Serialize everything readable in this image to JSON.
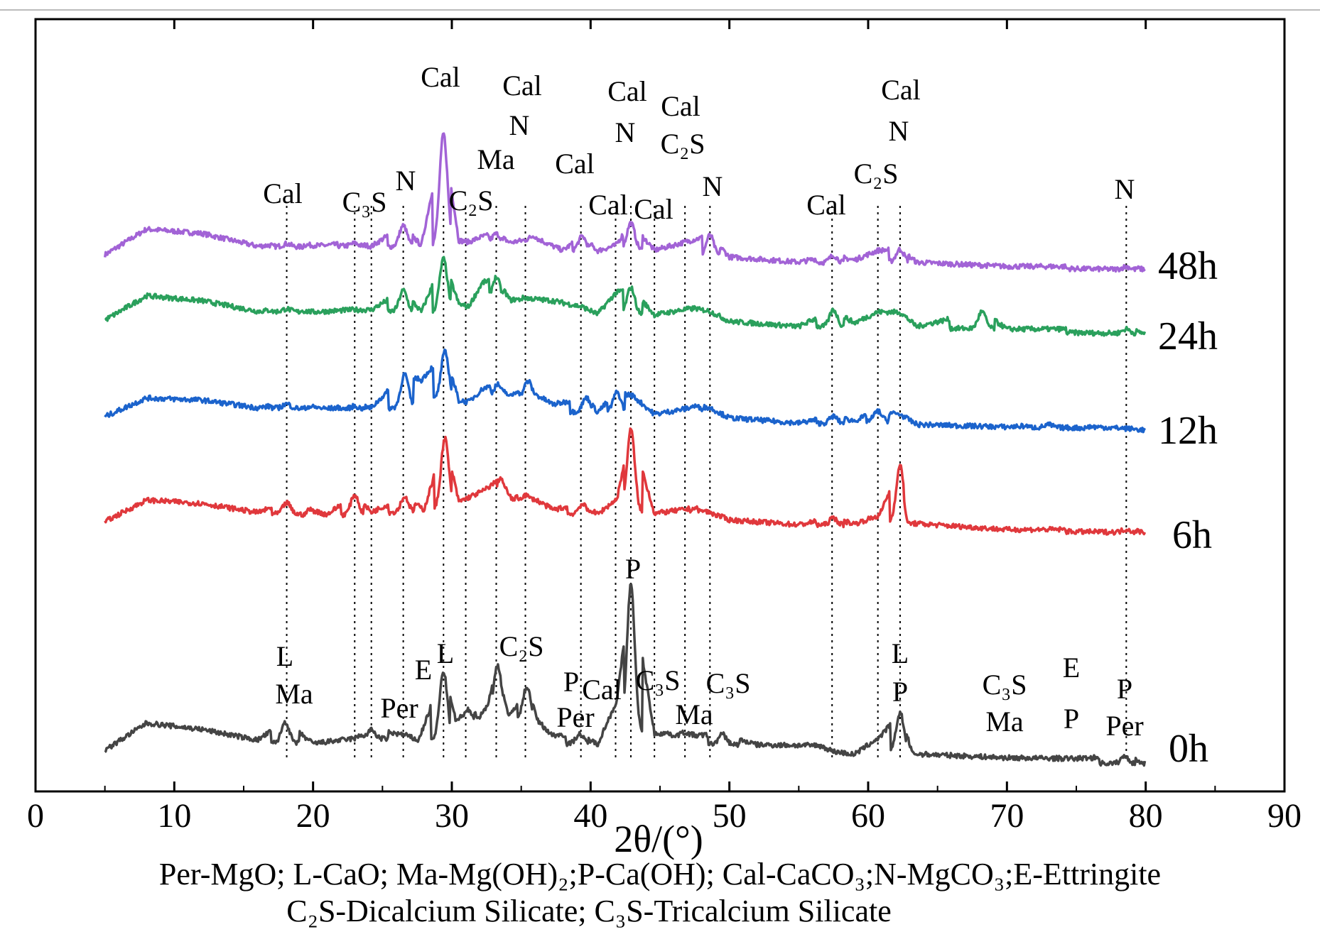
{
  "chart_data": {
    "type": "line",
    "title": "",
    "xlabel": "2θ/(°)",
    "ylabel": "",
    "xlim": [
      0,
      90
    ],
    "xticks": [
      0,
      10,
      20,
      30,
      40,
      50,
      60,
      70,
      80,
      90
    ],
    "grid": false,
    "series": [
      {
        "name": "48h",
        "color": "#a263d6",
        "x": [
          5,
          8,
          12,
          16,
          18.1,
          20.5,
          23,
          24.2,
          26.5,
          27.8,
          29.4,
          30.5,
          31.2,
          32.2,
          33.2,
          34.2,
          35.3,
          35.9,
          36.8,
          38,
          39.4,
          40.5,
          41.8,
          42.9,
          44.6,
          46.8,
          47.5,
          48.6,
          50,
          55,
          57.5,
          59,
          60.7,
          62.3,
          63.5,
          70,
          78.6,
          80
        ],
        "offset": [
          3,
          40,
          35,
          18,
          22,
          20,
          24,
          20,
          50,
          22,
          180,
          30,
          28,
          36,
          40,
          28,
          32,
          38,
          28,
          18,
          38,
          18,
          26,
          58,
          20,
          32,
          36,
          42,
          12,
          6,
          16,
          10,
          24,
          26,
          8,
          4,
          6,
          2
        ]
      },
      {
        "name": "24h",
        "color": "#2aa05c",
        "x": [
          5,
          8,
          12,
          16,
          18.1,
          20,
          23,
          24.2,
          26.5,
          27.8,
          29.4,
          30.5,
          31.2,
          32.2,
          33.2,
          34.2,
          35.3,
          36,
          37.3,
          39.4,
          40.5,
          41.8,
          42.9,
          44.6,
          46.8,
          47.5,
          48.6,
          50,
          55,
          57.5,
          59,
          60.7,
          62.3,
          63.5,
          68.2,
          70,
          78.6,
          80
        ],
        "offset": [
          3,
          38,
          32,
          18,
          22,
          18,
          22,
          22,
          50,
          20,
          95,
          32,
          28,
          62,
          70,
          38,
          42,
          40,
          38,
          30,
          20,
          50,
          58,
          20,
          28,
          30,
          26,
          12,
          6,
          30,
          12,
          28,
          28,
          8,
          30,
          6,
          8,
          2
        ]
      },
      {
        "name": "12h",
        "color": "#1b63cc",
        "x": [
          5,
          8,
          12,
          16,
          18.1,
          21,
          23,
          24.2,
          26.6,
          27.8,
          29.5,
          30.5,
          31.2,
          32.3,
          33.3,
          34.2,
          35.5,
          36,
          37.3,
          39.7,
          40.5,
          41.9,
          43,
          44.6,
          46.8,
          47.5,
          48.6,
          50,
          55,
          57.5,
          59,
          60.7,
          62.3,
          63.5,
          70,
          73,
          78.6,
          80
        ],
        "offset": [
          3,
          30,
          28,
          18,
          24,
          18,
          22,
          20,
          68,
          60,
          100,
          32,
          30,
          50,
          55,
          38,
          60,
          42,
          28,
          38,
          18,
          46,
          42,
          16,
          24,
          28,
          26,
          12,
          6,
          16,
          10,
          24,
          20,
          6,
          4,
          8,
          4,
          2
        ]
      },
      {
        "name": "6h",
        "color": "#e0383c",
        "x": [
          5,
          8,
          12,
          16,
          18.1,
          21,
          23,
          24.2,
          26.6,
          28,
          29.5,
          30.5,
          31.2,
          32.3,
          33,
          33.5,
          34.3,
          35.3,
          36.2,
          37.3,
          39.4,
          40.5,
          41.9,
          42.9,
          44.6,
          46.8,
          47.5,
          48.6,
          50,
          55,
          57.5,
          59,
          60.8,
          62.3,
          62.8,
          70,
          78.6,
          80
        ],
        "offset": [
          3,
          34,
          30,
          18,
          32,
          16,
          44,
          20,
          42,
          24,
          125,
          36,
          42,
          52,
          62,
          70,
          40,
          46,
          38,
          26,
          34,
          20,
          42,
          140,
          22,
          28,
          30,
          24,
          14,
          8,
          18,
          10,
          22,
          92,
          12,
          4,
          6,
          2
        ]
      },
      {
        "name": "0h",
        "color": "#444444",
        "x": [
          5,
          8,
          12,
          16,
          18,
          20,
          23,
          24.2,
          26.6,
          27.6,
          29.4,
          30.3,
          31.2,
          32,
          32.6,
          33.3,
          34.1,
          35.4,
          36.2,
          37.2,
          39.2,
          40.5,
          41.9,
          42.9,
          44.6,
          46.8,
          47.5,
          49.5,
          52,
          56.5,
          57.5,
          59,
          60.9,
          62.3,
          63.2,
          70,
          74.8,
          78.5,
          80
        ],
        "offset": [
          3,
          42,
          34,
          20,
          46,
          16,
          24,
          36,
          30,
          22,
          120,
          50,
          66,
          56,
          75,
          130,
          56,
          100,
          52,
          32,
          34,
          20,
          82,
          245,
          36,
          38,
          34,
          36,
          22,
          22,
          14,
          10,
          36,
          70,
          12,
          8,
          8,
          12,
          2
        ]
      }
    ],
    "series_labels": [
      "48h",
      "24h",
      "12h",
      "6h",
      "0h"
    ],
    "phase_labels_top": [
      "Cal",
      "C₃S",
      "N",
      "Cal",
      "C₂S",
      "Ma",
      "Cal",
      "N",
      "Cal",
      "Cal",
      "N",
      "Cal",
      "Cal",
      "C₂S",
      "N",
      "Cal",
      "C₂S",
      "Cal",
      "N",
      "Cal",
      "N"
    ],
    "phase_labels_bottom": [
      "L",
      "Ma",
      "Per",
      "E",
      "L",
      "C₂S",
      "P",
      "P",
      "Per",
      "Cal",
      "C₃S",
      "Ma",
      "C₃S",
      "L",
      "P",
      "C₃S",
      "Ma",
      "E",
      "P",
      "P",
      "Per"
    ],
    "reference_lines_2theta": [
      18.1,
      23,
      24.2,
      26.5,
      29.4,
      31,
      33.2,
      35.3,
      39.3,
      41.8,
      42.9,
      44.6,
      46.8,
      48.6,
      57.4,
      60.7,
      62.3,
      78.6
    ],
    "legend_line1": "Per-MgO; L-CaO; Ma-Mg(OH)₂;P-Ca(OH); Cal-CaCO₃;N-MgCO₃;E-Ettringite",
    "legend_line2": "C₂S-Dicalcium Silicate; C₃S-Tricalcium Silicate"
  }
}
